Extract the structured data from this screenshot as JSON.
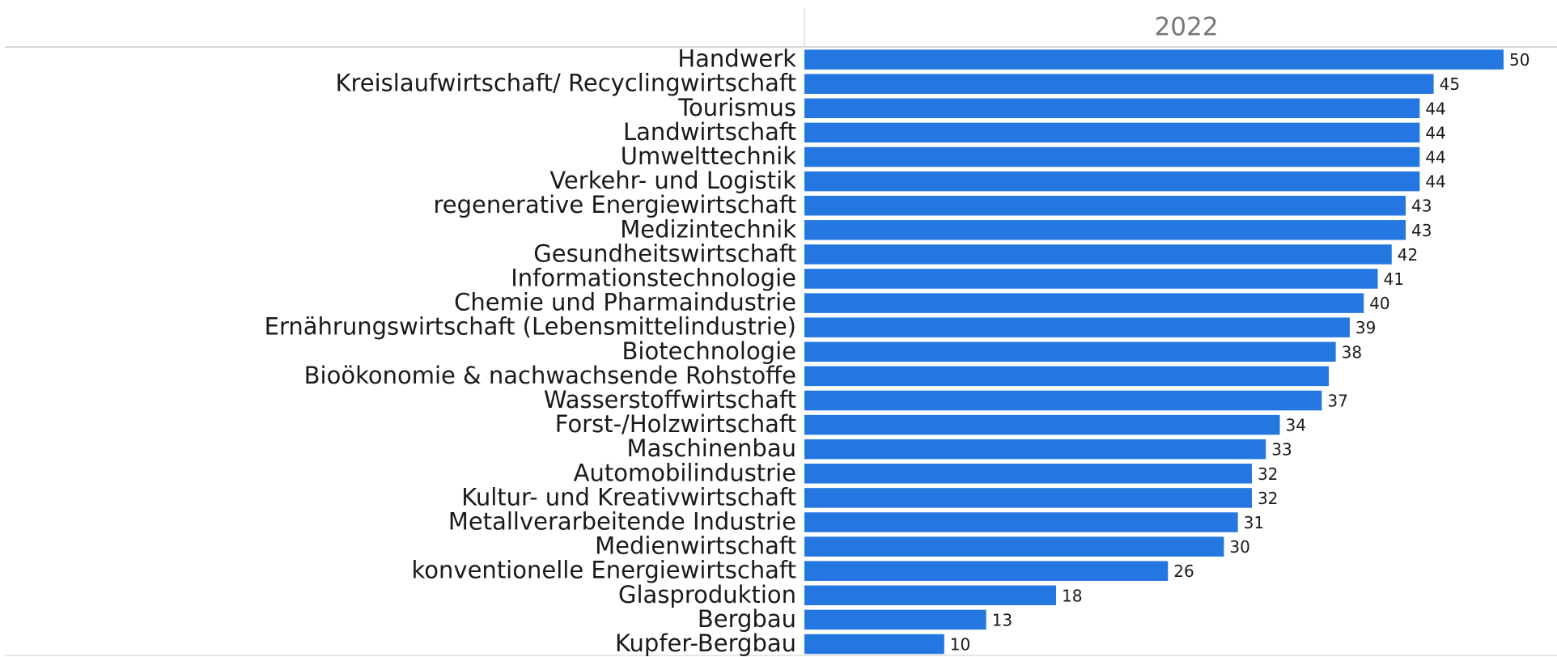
{
  "chart_data": {
    "type": "bar",
    "orientation": "horizontal",
    "title": "2022",
    "color": "#2477e0",
    "categories": [
      "Handwerk",
      "Kreislaufwirtschaft/ Recyclingwirtschaft",
      "Tourismus",
      "Landwirtschaft",
      "Umwelttechnik",
      "Verkehr- und Logistik",
      "regenerative Energiewirtschaft",
      "Medizintechnik",
      "Gesundheitswirtschaft",
      "Informationstechnologie",
      "Chemie und Pharmaindustrie",
      "Ernährungswirtschaft (Lebensmittelindustrie)",
      "Biotechnologie",
      "Bioökonomie & nachwachsende Rohstoffe",
      "Wasserstoffwirtschaft",
      "Forst-/Holzwirtschaft",
      "Maschinenbau",
      "Automobilindustrie",
      "Kultur- und Kreativwirtschaft",
      "Metallverarbeitende Industrie",
      "Medienwirtschaft",
      "konventionelle Energiewirtschaft",
      "Glasproduktion",
      "Bergbau",
      "Kupfer-Bergbau"
    ],
    "values": [
      50,
      45,
      44,
      44,
      44,
      44,
      43,
      43,
      42,
      41,
      40,
      39,
      38,
      37.5,
      37,
      34,
      33,
      32,
      32,
      31,
      30,
      26,
      18,
      13,
      10
    ],
    "value_labels": [
      "50",
      "45",
      "44",
      "44",
      "44",
      "44",
      "43",
      "43",
      "42",
      "41",
      "40",
      "39",
      "38",
      null,
      "37",
      "34",
      "33",
      "32",
      "32",
      "31",
      "30",
      "26",
      "18",
      "13",
      "10"
    ]
  }
}
